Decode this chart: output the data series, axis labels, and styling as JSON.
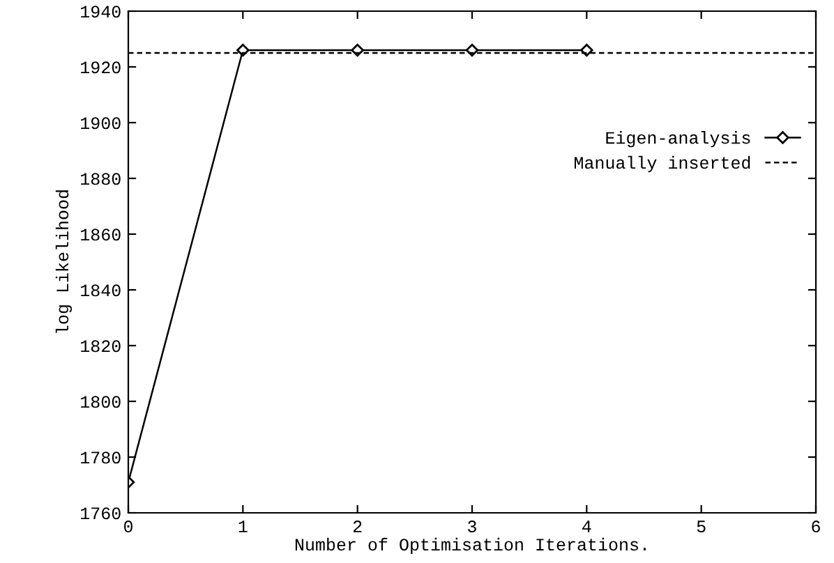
{
  "chart_data": {
    "type": "line",
    "xlabel": "Number of Optimisation Iterations.",
    "ylabel": "log Likelihood",
    "xlim": [
      0,
      6
    ],
    "xticks": [
      0,
      1,
      2,
      3,
      4,
      5,
      6
    ],
    "ylim": [
      1760,
      1940
    ],
    "yticks": [
      1760,
      1780,
      1800,
      1820,
      1840,
      1860,
      1880,
      1900,
      1920,
      1940
    ],
    "grid": false,
    "legend": "right",
    "series": [
      {
        "name": "Eigen-analysis",
        "color": "#000000",
        "x": [
          0,
          1,
          2,
          3,
          4
        ],
        "values": [
          1771,
          1926,
          1926,
          1926,
          1926
        ],
        "marker": "diamond",
        "line_style": "solid"
      },
      {
        "name": "Manually inserted",
        "color": "#000000",
        "x": [
          0,
          6
        ],
        "values": [
          1925,
          1925
        ],
        "marker": "none",
        "line_style": "dashed"
      }
    ]
  }
}
